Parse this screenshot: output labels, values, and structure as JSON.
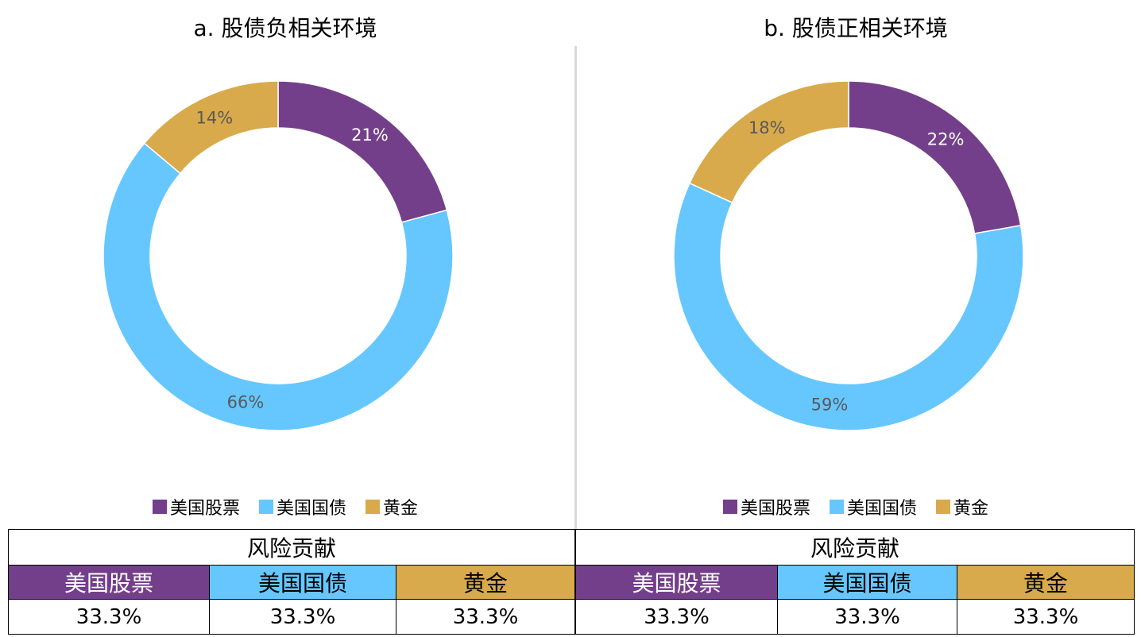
{
  "colors": {
    "stocks": "#743f8a",
    "bonds": "#66c7ff",
    "gold": "#d9aa4b"
  },
  "chart_data": [
    {
      "type": "pie",
      "title": "a. 股债负相关环境",
      "categories": [
        "美国股票",
        "美国国债",
        "黄金"
      ],
      "values": [
        21,
        66,
        14
      ],
      "labels": [
        "21%",
        "66%",
        "14%"
      ],
      "legend": "bottom"
    },
    {
      "type": "pie",
      "title": "b. 股债正相关环境",
      "categories": [
        "美国股票",
        "美国国债",
        "黄金"
      ],
      "values": [
        22,
        59,
        18
      ],
      "labels": [
        "22%",
        "59%",
        "18%"
      ],
      "legend": "bottom"
    },
    {
      "type": "table",
      "header": "风险贡献",
      "columns": [
        "美国股票",
        "美国国债",
        "黄金"
      ],
      "rows": [
        [
          "33.3%",
          "33.3%",
          "33.3%"
        ]
      ]
    },
    {
      "type": "table",
      "header": "风险贡献",
      "columns": [
        "美国股票",
        "美国国债",
        "黄金"
      ],
      "rows": [
        [
          "33.3%",
          "33.3%",
          "33.3%"
        ]
      ]
    }
  ]
}
